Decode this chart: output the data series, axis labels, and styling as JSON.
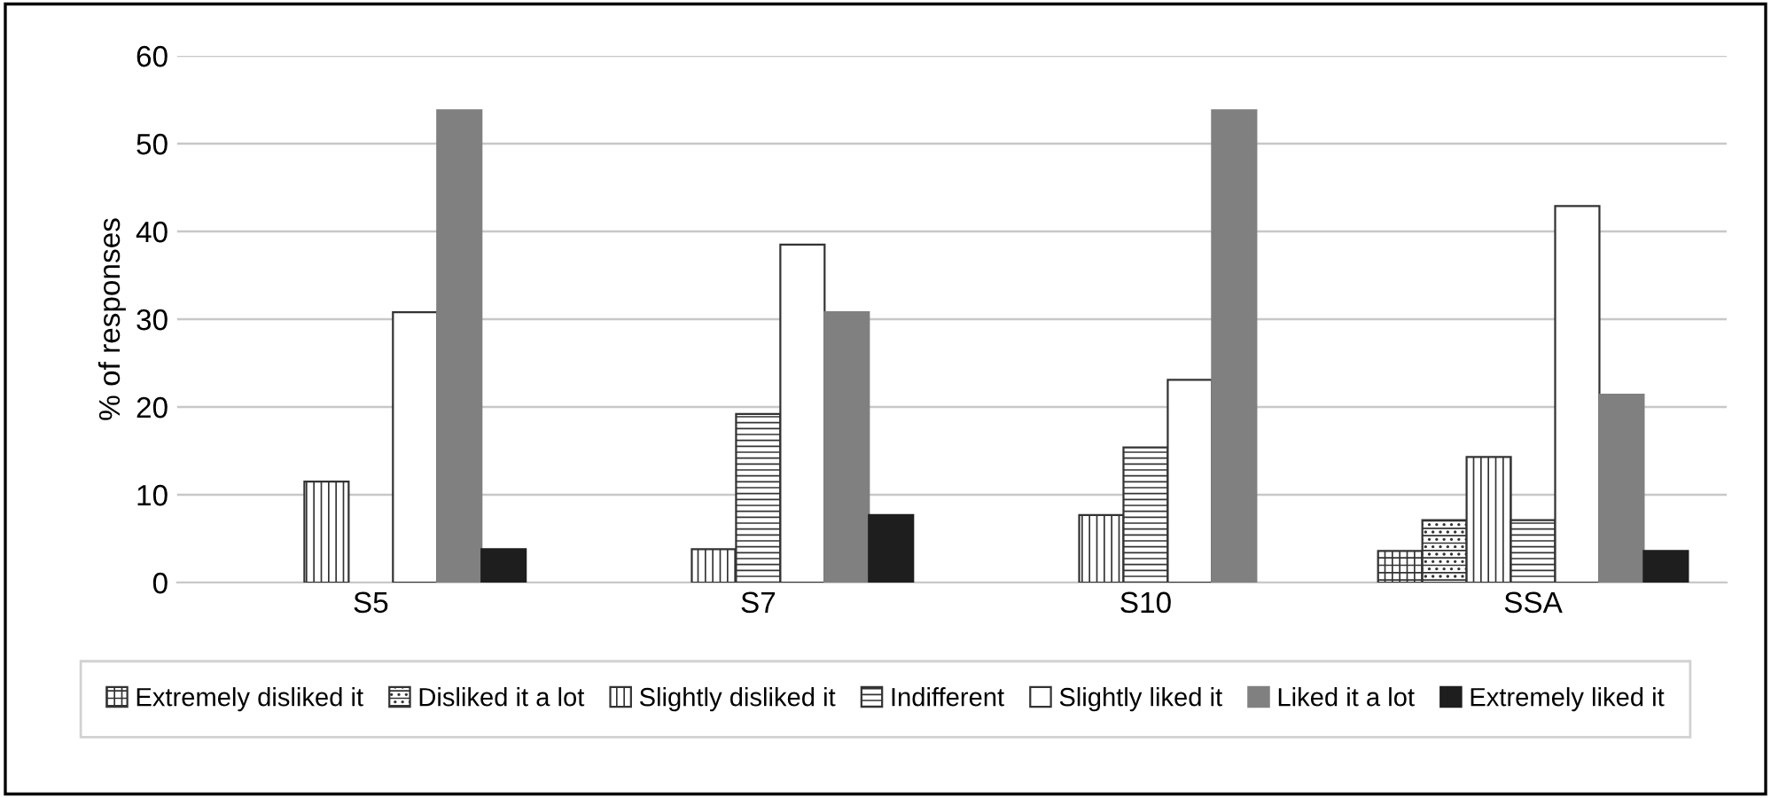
{
  "chart_data": {
    "type": "bar",
    "ylabel": "% of responses",
    "categories": [
      "S5",
      "S7",
      "S10",
      "SSA"
    ],
    "series": [
      {
        "name": "Extremely disliked it",
        "color": "#333333",
        "values": [
          null,
          null,
          null,
          3.6
        ]
      },
      {
        "name": "Disliked it a lot",
        "color": "#333333",
        "values": [
          null,
          null,
          null,
          7.1
        ]
      },
      {
        "name": "Slightly disliked it",
        "color": "#333333",
        "values": [
          11.5,
          3.8,
          7.7,
          14.3
        ]
      },
      {
        "name": "Indifferent",
        "color": "#333333",
        "values": [
          null,
          19.2,
          15.4,
          7.1
        ]
      },
      {
        "name": "Slightly liked it",
        "color": "#ffffff",
        "values": [
          30.8,
          38.5,
          23.1,
          42.9
        ]
      },
      {
        "name": "Liked it a lot",
        "color": "#808080",
        "values": [
          53.8,
          30.8,
          53.8,
          21.4
        ]
      },
      {
        "name": "Extremely liked it",
        "color": "#1e1e1e",
        "values": [
          3.8,
          7.7,
          null,
          3.6
        ]
      }
    ],
    "ylim": [
      0,
      60
    ],
    "yticks": [
      0,
      10,
      20,
      30,
      40,
      50,
      60
    ],
    "grid": "y",
    "legend": "bottom"
  }
}
